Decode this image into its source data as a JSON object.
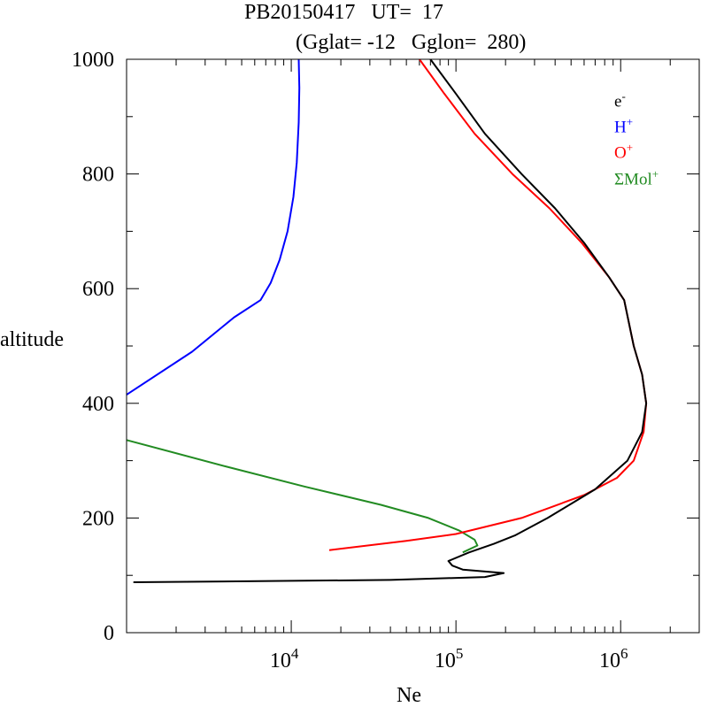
{
  "chart_data": {
    "type": "line",
    "title": "PB20150417   UT=  17",
    "subtitle": "(Gglat= -12   Gglon=  280)",
    "xlabel": "Ne",
    "ylabel": "altitude",
    "x_scale": "log",
    "xlim": [
      1000,
      3000000
    ],
    "ylim": [
      0,
      1000
    ],
    "x_tick_labels": [
      {
        "value": 10000,
        "base": "10",
        "exp": "4"
      },
      {
        "value": 100000,
        "base": "10",
        "exp": "5"
      },
      {
        "value": 1000000,
        "base": "10",
        "exp": "6"
      }
    ],
    "y_ticks": [
      0,
      200,
      400,
      600,
      800,
      1000
    ],
    "legend_position": "top-right",
    "series": [
      {
        "name": "e-",
        "legend_base": "e",
        "legend_sup": "-",
        "color": "#000000",
        "points": [
          [
            1100,
            88
          ],
          [
            40000,
            92
          ],
          [
            150000,
            97
          ],
          [
            195000,
            104
          ],
          [
            110000,
            110
          ],
          [
            95000,
            117
          ],
          [
            90000,
            125
          ],
          [
            120000,
            140
          ],
          [
            170000,
            155
          ],
          [
            230000,
            170
          ],
          [
            360000,
            200
          ],
          [
            700000,
            250
          ],
          [
            1100000,
            300
          ],
          [
            1350000,
            350
          ],
          [
            1430000,
            400
          ],
          [
            1350000,
            450
          ],
          [
            1200000,
            500
          ],
          [
            1050000,
            580
          ],
          [
            850000,
            620
          ],
          [
            600000,
            680
          ],
          [
            400000,
            740
          ],
          [
            250000,
            800
          ],
          [
            150000,
            870
          ],
          [
            100000,
            940
          ],
          [
            70000,
            1000
          ]
        ]
      },
      {
        "name": "H+",
        "legend_base": "H",
        "legend_sup": "+",
        "color": "#0000ff",
        "points": [
          [
            1000,
            415
          ],
          [
            2500,
            490
          ],
          [
            4500,
            550
          ],
          [
            6500,
            580
          ],
          [
            7500,
            610
          ],
          [
            8500,
            650
          ],
          [
            9500,
            700
          ],
          [
            10300,
            760
          ],
          [
            10800,
            820
          ],
          [
            11100,
            890
          ],
          [
            11200,
            950
          ],
          [
            11100,
            1000
          ]
        ]
      },
      {
        "name": "O+",
        "legend_base": "O",
        "legend_sup": "+",
        "color": "#ff0000",
        "points": [
          [
            17000,
            144
          ],
          [
            50000,
            160
          ],
          [
            100000,
            172
          ],
          [
            250000,
            200
          ],
          [
            600000,
            240
          ],
          [
            950000,
            270
          ],
          [
            1200000,
            300
          ],
          [
            1380000,
            350
          ],
          [
            1430000,
            400
          ],
          [
            1350000,
            450
          ],
          [
            1200000,
            500
          ],
          [
            1050000,
            580
          ],
          [
            850000,
            620
          ],
          [
            580000,
            680
          ],
          [
            370000,
            740
          ],
          [
            220000,
            800
          ],
          [
            130000,
            870
          ],
          [
            85000,
            940
          ],
          [
            60000,
            1000
          ]
        ]
      },
      {
        "name": "ΣMol+",
        "legend_base": "ΣMol",
        "legend_sup": "+",
        "color": "#228b22",
        "points": [
          [
            1000,
            336
          ],
          [
            4000,
            290
          ],
          [
            12000,
            255
          ],
          [
            35000,
            223
          ],
          [
            68000,
            200
          ],
          [
            105000,
            178
          ],
          [
            130000,
            162
          ],
          [
            135000,
            152
          ],
          [
            110000,
            140
          ]
        ]
      }
    ]
  }
}
